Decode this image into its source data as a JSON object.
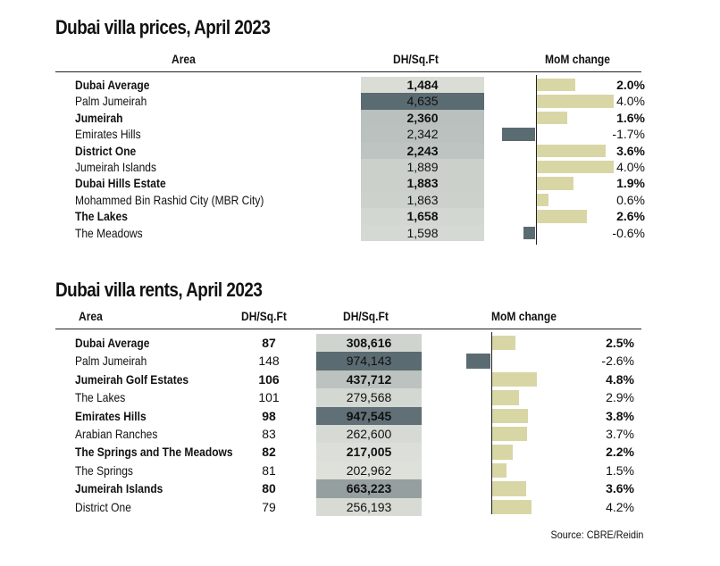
{
  "colors": {
    "positive": "#d9d6a6",
    "negative": "#5b6b72",
    "shade_scale": [
      "#e9ebe3",
      "#5b6b72"
    ]
  },
  "chart_data": [
    {
      "type": "table",
      "title": "Dubai villa prices, April 2023",
      "columns": [
        "Area",
        "DH/Sq.Ft",
        "MoM change"
      ],
      "rows": [
        {
          "area": "Dubai Average",
          "price": "1,484",
          "value": 1484,
          "mom": "2.0%",
          "mom_value": 2.0,
          "bold": true
        },
        {
          "area": "Palm Jumeirah",
          "price": "4,635",
          "value": 4635,
          "mom": "4.0%",
          "mom_value": 4.0,
          "bold": false
        },
        {
          "area": "Jumeirah",
          "price": "2,360",
          "value": 2360,
          "mom": "1.6%",
          "mom_value": 1.6,
          "bold": true
        },
        {
          "area": "Emirates Hills",
          "price": "2,342",
          "value": 2342,
          "mom": "-1.7%",
          "mom_value": -1.7,
          "bold": false
        },
        {
          "area": "District One",
          "price": "2,243",
          "value": 2243,
          "mom": "3.6%",
          "mom_value": 3.6,
          "bold": true
        },
        {
          "area": "Jumeirah Islands",
          "price": "1,889",
          "value": 1889,
          "mom": "4.0%",
          "mom_value": 4.0,
          "bold": false
        },
        {
          "area": "Dubai Hills Estate",
          "price": "1,883",
          "value": 1883,
          "mom": "1.9%",
          "mom_value": 1.9,
          "bold": true
        },
        {
          "area": "Mohammed Bin Rashid City (MBR City)",
          "price": "1,863",
          "value": 1863,
          "mom": "0.6%",
          "mom_value": 0.6,
          "bold": false
        },
        {
          "area": "The Lakes",
          "price": "1,658",
          "value": 1658,
          "mom": "2.6%",
          "mom_value": 2.6,
          "bold": true
        },
        {
          "area": "The Meadows",
          "price": "1,598",
          "value": 1598,
          "mom": "-0.6%",
          "mom_value": -0.6,
          "bold": false
        }
      ]
    },
    {
      "type": "table",
      "title": "Dubai villa rents, April 2023",
      "columns": [
        "Area",
        "DH/Sq.Ft",
        "DH/Sq.Ft",
        "MoM change"
      ],
      "rows": [
        {
          "area": "Dubai Average",
          "rent_sqft": "87",
          "rent": "308,616",
          "value": 308616,
          "mom": "2.5%",
          "mom_value": 2.5,
          "bold": true
        },
        {
          "area": "Palm Jumeirah",
          "rent_sqft": "148",
          "rent": "974,143",
          "value": 974143,
          "mom": "-2.6%",
          "mom_value": -2.6,
          "bold": false
        },
        {
          "area": "Jumeirah Golf Estates",
          "rent_sqft": "106",
          "rent": "437,712",
          "value": 437712,
          "mom": "4.8%",
          "mom_value": 4.8,
          "bold": true
        },
        {
          "area": "The Lakes",
          "rent_sqft": "101",
          "rent": "279,568",
          "value": 279568,
          "mom": "2.9%",
          "mom_value": 2.9,
          "bold": false
        },
        {
          "area": "Emirates Hills",
          "rent_sqft": "98",
          "rent": "947,545",
          "value": 947545,
          "mom": "3.8%",
          "mom_value": 3.8,
          "bold": true
        },
        {
          "area": "Arabian Ranches",
          "rent_sqft": "83",
          "rent": "262,600",
          "value": 262600,
          "mom": "3.7%",
          "mom_value": 3.7,
          "bold": false
        },
        {
          "area": "The Springs and The Meadows",
          "rent_sqft": "82",
          "rent": "217,005",
          "value": 217005,
          "mom": "2.2%",
          "mom_value": 2.2,
          "bold": true
        },
        {
          "area": "The Springs",
          "rent_sqft": "81",
          "rent": "202,962",
          "value": 202962,
          "mom": "1.5%",
          "mom_value": 1.5,
          "bold": false
        },
        {
          "area": "Jumeirah Islands",
          "rent_sqft": "80",
          "rent": "663,223",
          "value": 663223,
          "mom": "3.6%",
          "mom_value": 3.6,
          "bold": true
        },
        {
          "area": "District One",
          "rent_sqft": "79",
          "rent": "256,193",
          "value": 256193,
          "mom": "4.2%",
          "mom_value": 4.2,
          "bold": false
        }
      ]
    }
  ],
  "source": "Source: CBRE/Reidin"
}
